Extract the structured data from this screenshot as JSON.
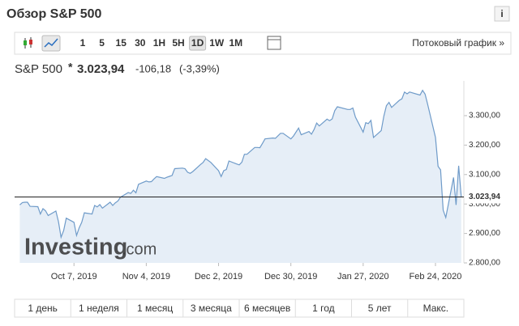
{
  "header": {
    "title": "Обзор S&P 500",
    "info": "i"
  },
  "toolbar": {
    "intervals": [
      "1",
      "5",
      "15",
      "30",
      "1H",
      "5H",
      "1D",
      "1W",
      "1M"
    ],
    "active_interval": "1D",
    "stream_link": "Потоковый график »"
  },
  "quote": {
    "name": "S&P 500",
    "marker": "*",
    "change": "-106,18",
    "change_pct": "(-3,39%)"
  },
  "chart_data": {
    "type": "area",
    "x": [
      "2019-09-16",
      "2019-09-17",
      "2019-09-18",
      "2019-09-19",
      "2019-09-20",
      "2019-09-23",
      "2019-09-24",
      "2019-09-25",
      "2019-09-26",
      "2019-09-27",
      "2019-09-30",
      "2019-10-01",
      "2019-10-02",
      "2019-10-03",
      "2019-10-04",
      "2019-10-07",
      "2019-10-08",
      "2019-10-09",
      "2019-10-10",
      "2019-10-11",
      "2019-10-14",
      "2019-10-15",
      "2019-10-16",
      "2019-10-17",
      "2019-10-18",
      "2019-10-21",
      "2019-10-22",
      "2019-10-23",
      "2019-10-24",
      "2019-10-25",
      "2019-10-28",
      "2019-10-29",
      "2019-10-30",
      "2019-10-31",
      "2019-11-01",
      "2019-11-04",
      "2019-11-05",
      "2019-11-06",
      "2019-11-07",
      "2019-11-08",
      "2019-11-11",
      "2019-11-12",
      "2019-11-13",
      "2019-11-14",
      "2019-11-15",
      "2019-11-18",
      "2019-11-19",
      "2019-11-20",
      "2019-11-21",
      "2019-11-22",
      "2019-11-25",
      "2019-11-26",
      "2019-11-27",
      "2019-11-29",
      "2019-12-02",
      "2019-12-03",
      "2019-12-04",
      "2019-12-05",
      "2019-12-06",
      "2019-12-09",
      "2019-12-10",
      "2019-12-11",
      "2019-12-12",
      "2019-12-13",
      "2019-12-16",
      "2019-12-17",
      "2019-12-18",
      "2019-12-19",
      "2019-12-20",
      "2019-12-23",
      "2019-12-24",
      "2019-12-26",
      "2019-12-27",
      "2019-12-30",
      "2019-12-31",
      "2020-01-02",
      "2020-01-03",
      "2020-01-06",
      "2020-01-07",
      "2020-01-08",
      "2020-01-09",
      "2020-01-10",
      "2020-01-13",
      "2020-01-14",
      "2020-01-15",
      "2020-01-16",
      "2020-01-17",
      "2020-01-21",
      "2020-01-22",
      "2020-01-23",
      "2020-01-24",
      "2020-01-27",
      "2020-01-28",
      "2020-01-29",
      "2020-01-30",
      "2020-01-31",
      "2020-02-03",
      "2020-02-04",
      "2020-02-05",
      "2020-02-06",
      "2020-02-07",
      "2020-02-10",
      "2020-02-11",
      "2020-02-12",
      "2020-02-13",
      "2020-02-14",
      "2020-02-18",
      "2020-02-19",
      "2020-02-20",
      "2020-02-21",
      "2020-02-24",
      "2020-02-25",
      "2020-02-26",
      "2020-02-27",
      "2020-02-28",
      "2020-03-02",
      "2020-03-03",
      "2020-03-04",
      "2020-03-05"
    ],
    "series": [
      {
        "color": "#6f9bc9",
        "fill": "#e6eef7",
        "values": [
          2997,
          3005,
          3006,
          3006,
          2992,
          2991,
          2966,
          2984,
          2977,
          2961,
          2976,
          2940,
          2887,
          2910,
          2952,
          2938,
          2893,
          2919,
          2938,
          2970,
          2966,
          2995,
          2990,
          2998,
          2986,
          3006,
          2995,
          3004,
          3010,
          3023,
          3039,
          3036,
          3047,
          3038,
          3067,
          3078,
          3075,
          3076,
          3085,
          3093,
          3087,
          3091,
          3094,
          3097,
          3120,
          3122,
          3120,
          3108,
          3104,
          3110,
          3134,
          3141,
          3154,
          3141,
          3113,
          3093,
          3113,
          3117,
          3146,
          3136,
          3133,
          3142,
          3169,
          3169,
          3192,
          3192,
          3191,
          3206,
          3221,
          3224,
          3223,
          3240,
          3240,
          3221,
          3231,
          3258,
          3235,
          3246,
          3237,
          3253,
          3275,
          3265,
          3288,
          3283,
          3289,
          3317,
          3330,
          3321,
          3321,
          3326,
          3295,
          3244,
          3276,
          3273,
          3284,
          3226,
          3249,
          3298,
          3334,
          3345,
          3328,
          3352,
          3357,
          3380,
          3374,
          3380,
          3370,
          3386,
          3373,
          3338,
          3226,
          3128,
          3116,
          2979,
          2954,
          3090,
          2997,
          3130,
          3023.94
        ]
      }
    ],
    "xlim": [
      "2019-09-14",
      "2020-03-06"
    ],
    "xticks": [
      {
        "value": "2019-10-07",
        "label": "Oct 7, 2019"
      },
      {
        "value": "2019-11-04",
        "label": "Nov 4, 2019"
      },
      {
        "value": "2019-12-02",
        "label": "Dec 2, 2019"
      },
      {
        "value": "2019-12-30",
        "label": "Dec 30, 2019"
      },
      {
        "value": "2020-01-27",
        "label": "Jan 27, 2020"
      },
      {
        "value": "2020-02-24",
        "label": "Feb 24, 2020"
      }
    ],
    "ylim": [
      2800,
      3418
    ],
    "yticks": [
      {
        "value": 2800,
        "label": "2.800,00"
      },
      {
        "value": 2900,
        "label": "2.900,00"
      },
      {
        "value": 3000,
        "label": "3.000,00"
      },
      {
        "value": 3100,
        "label": "3.100,00"
      },
      {
        "value": 3200,
        "label": "3.200,00"
      },
      {
        "value": 3300,
        "label": "3.300,00"
      }
    ],
    "current": {
      "value": 3023.94,
      "label": "3.023,94"
    },
    "watermark": {
      "brand": "Investing",
      "suffix": ".com"
    }
  },
  "ranges": [
    "1 день",
    "1 неделя",
    "1 месяц",
    "3 месяца",
    "6 месяцев",
    "1 год",
    "5 лет",
    "Макс."
  ]
}
